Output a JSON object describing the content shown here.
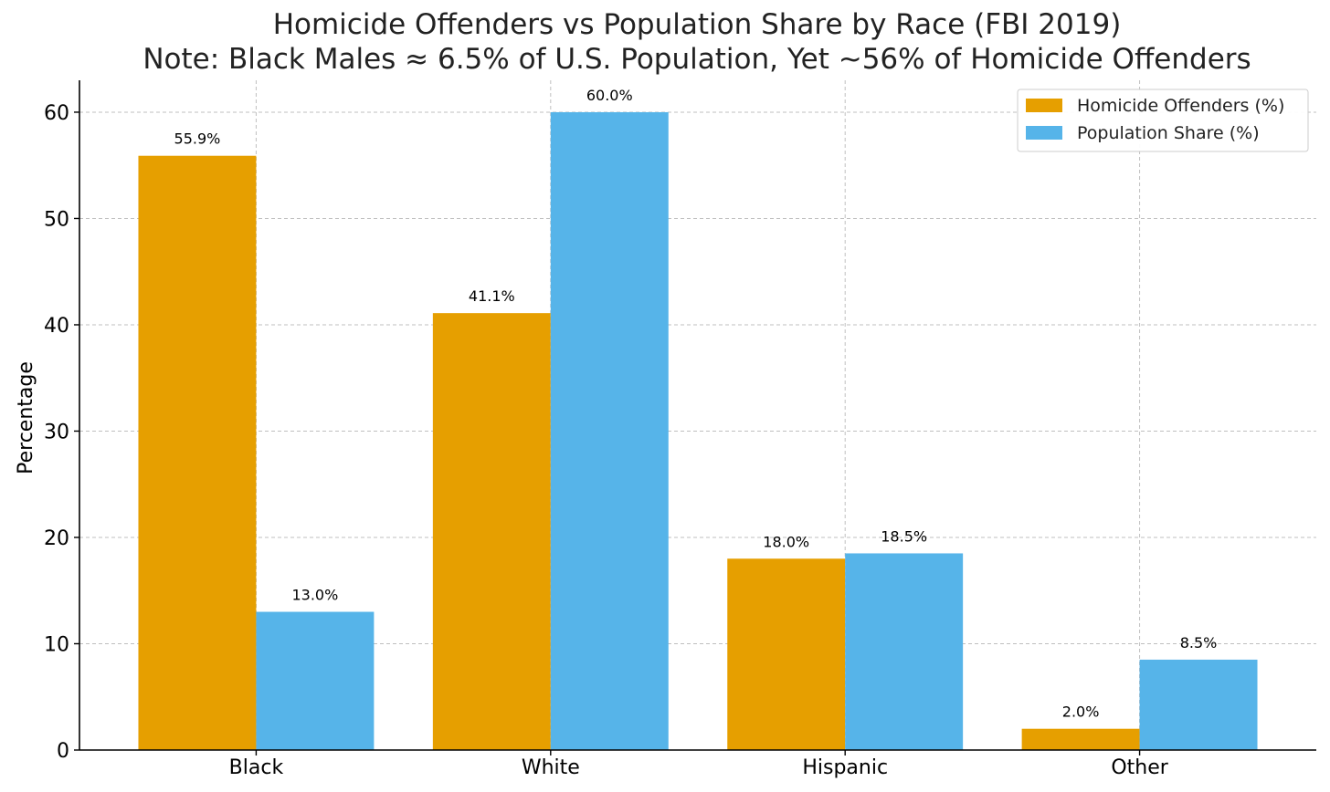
{
  "chart_data": {
    "type": "bar",
    "title": "Homicide Offenders vs Population Share by Race (FBI 2019)",
    "subtitle": "Note: Black Males ≈ 6.5% of U.S. Population, Yet ~56% of Homicide Offenders",
    "xlabel": "",
    "ylabel": "Percentage",
    "categories": [
      "Black",
      "White",
      "Hispanic",
      "Other"
    ],
    "series": [
      {
        "name": "Homicide Offenders (%)",
        "color": "#E69F00",
        "values": [
          55.9,
          41.1,
          18.0,
          2.0
        ]
      },
      {
        "name": "Population Share (%)",
        "color": "#56B4E9",
        "values": [
          13.0,
          60.0,
          18.5,
          8.5
        ]
      }
    ],
    "value_labels": [
      [
        "55.9%",
        "41.1%",
        "18.0%",
        "2.0%"
      ],
      [
        "13.0%",
        "60.0%",
        "18.5%",
        "8.5%"
      ]
    ],
    "ylim": [
      0,
      63
    ],
    "yticks": [
      0,
      10,
      20,
      30,
      40,
      50,
      60
    ],
    "grid": true,
    "legend_position": "top-right"
  }
}
